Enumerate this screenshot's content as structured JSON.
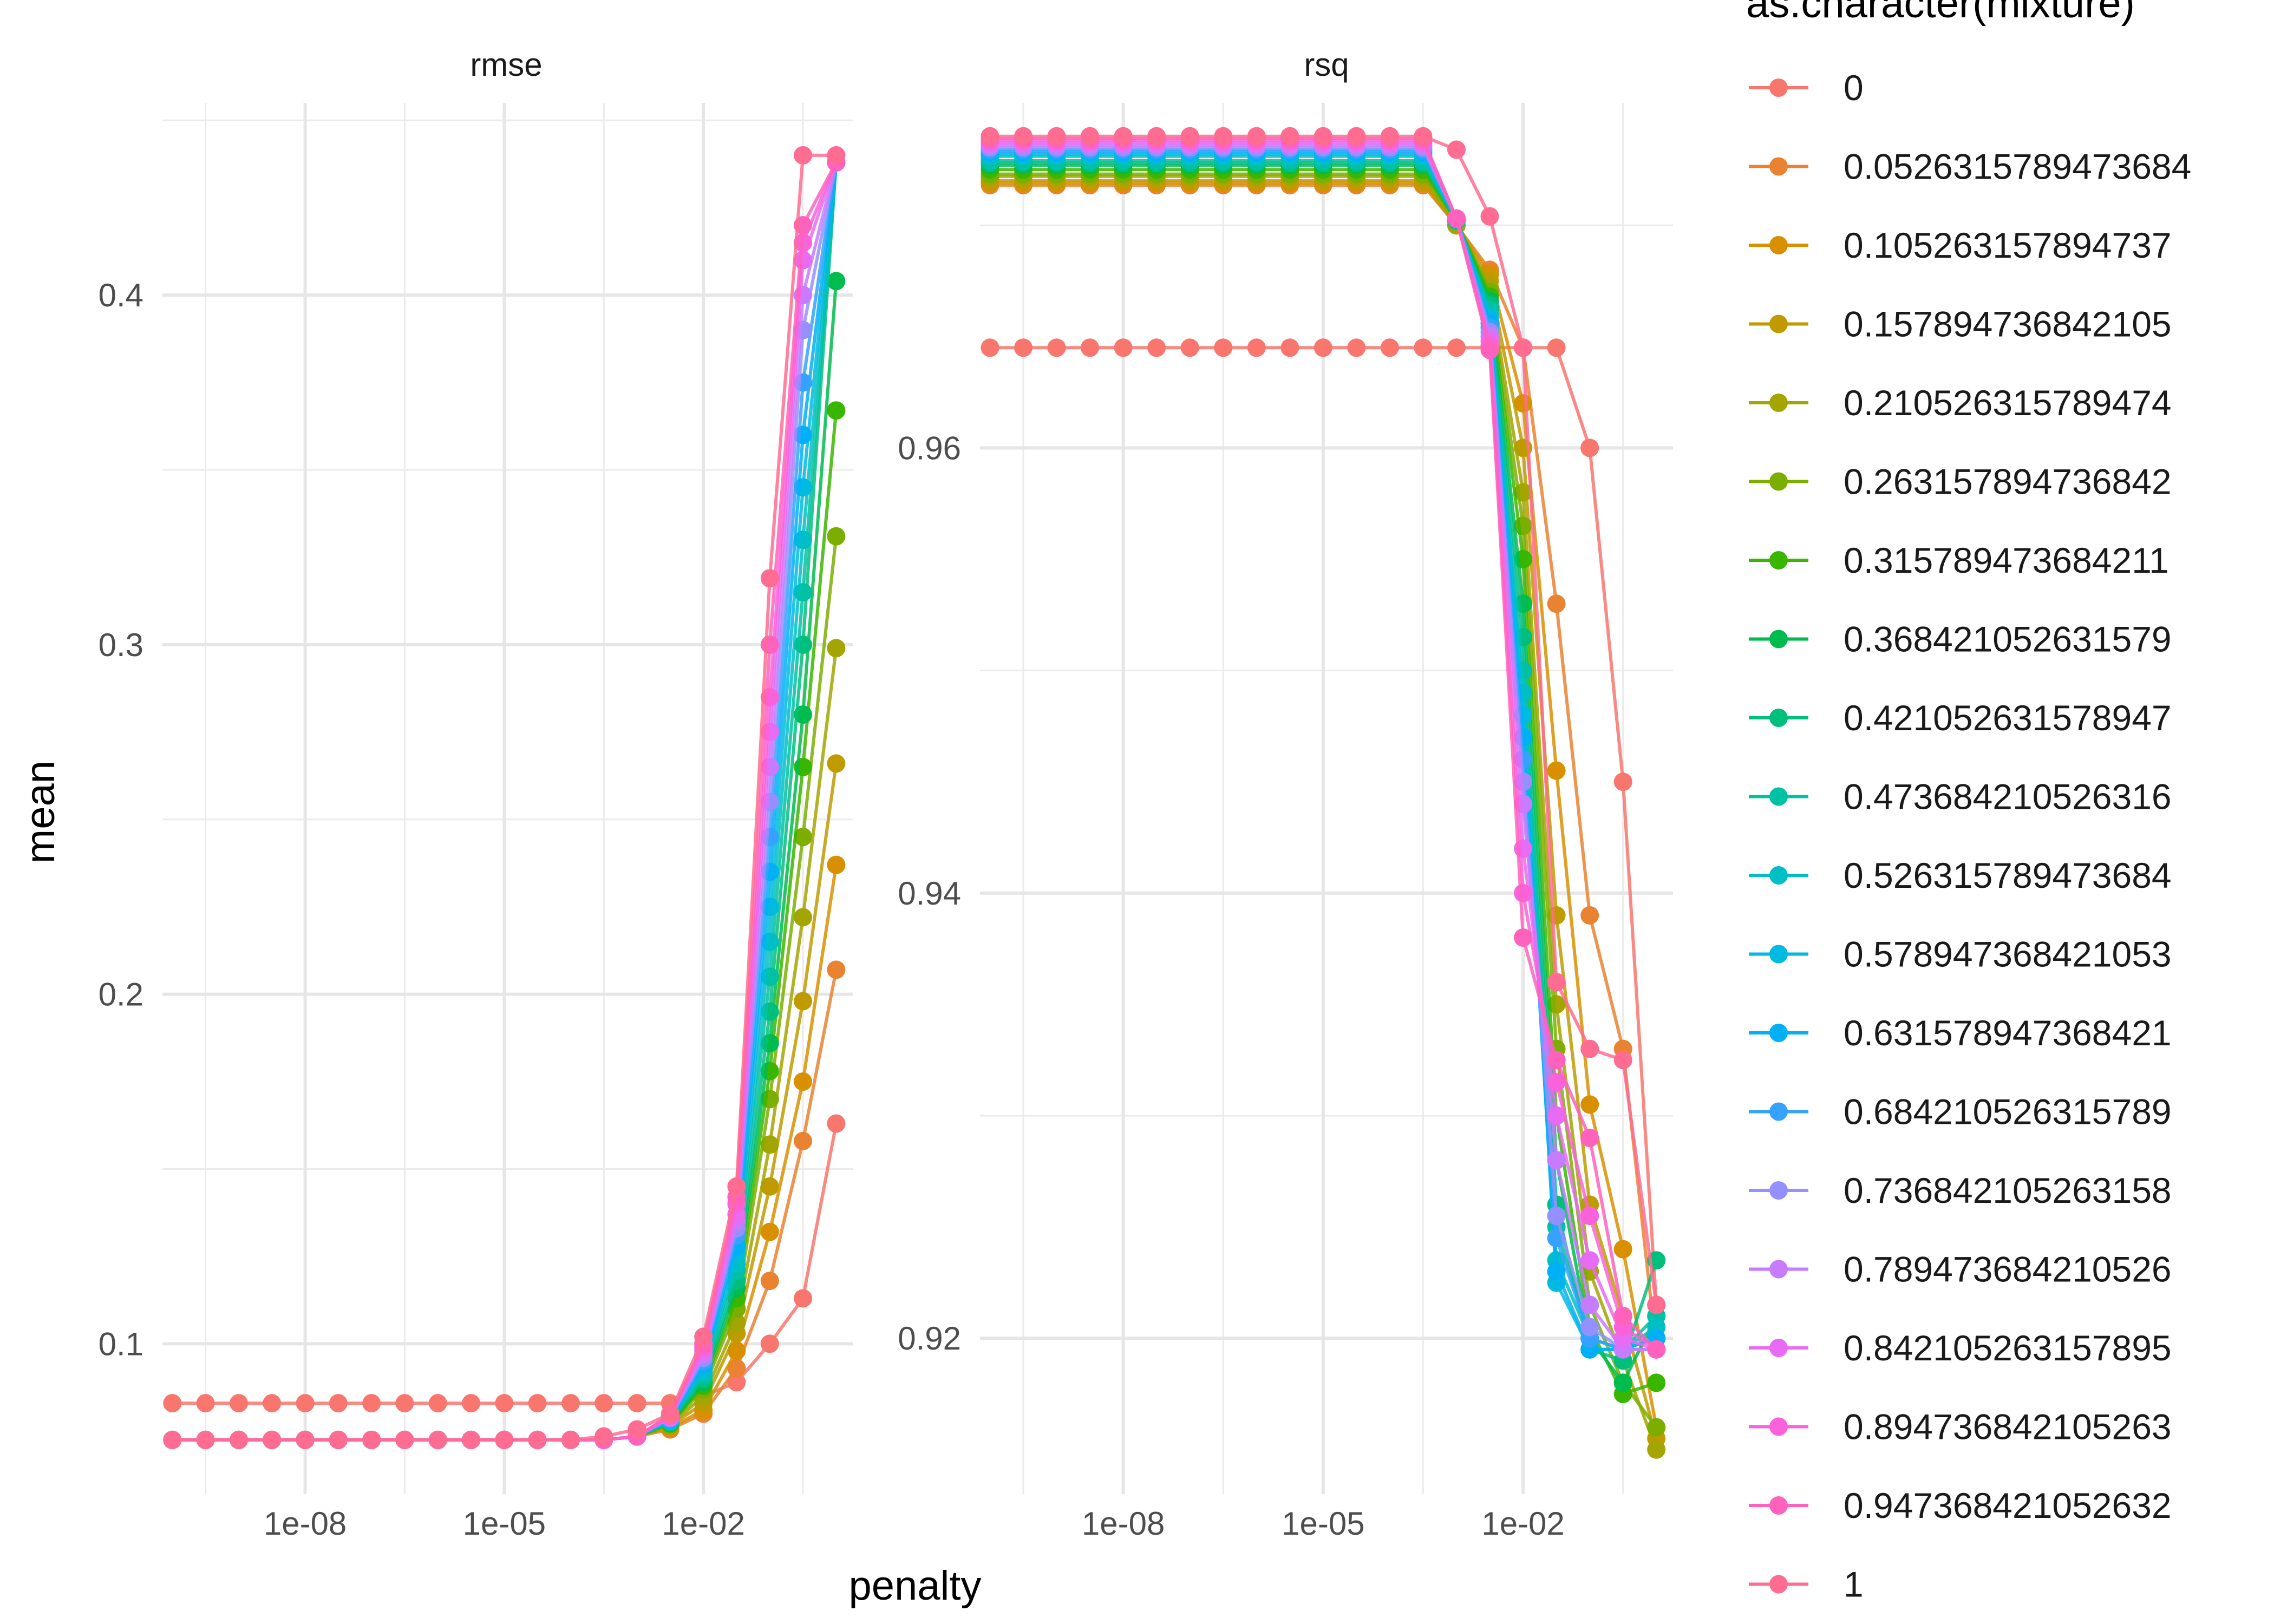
{
  "chart_data": {
    "type": "line",
    "facets": [
      "rmse",
      "rsq"
    ],
    "xlabel": "penalty",
    "ylabel": "mean",
    "x_scale": "log10",
    "x_ticks": [
      "1e-08",
      "1e-05",
      "1e-02"
    ],
    "x_range": [
      1e-10,
      1
    ],
    "panels": {
      "rmse": {
        "ylim": [
          0.057,
          0.455
        ],
        "y_ticks": [
          "0.1",
          "0.2",
          "0.3",
          "0.4"
        ],
        "y_tick_values": [
          0.1,
          0.2,
          0.3,
          0.4
        ]
      },
      "rsq": {
        "ylim": [
          0.913,
          0.9755
        ],
        "y_ticks": [
          "0.92",
          "0.94",
          "0.96"
        ],
        "y_tick_values": [
          0.92,
          0.94,
          0.96
        ]
      }
    },
    "penalty": [
      1e-10,
      3.16e-10,
      1e-09,
      3.16e-09,
      1e-08,
      3.16e-08,
      1e-07,
      3.16e-07,
      1e-06,
      3.16e-06,
      1e-05,
      3.16e-05,
      0.0001,
      0.000316,
      0.001,
      0.00316,
      0.01,
      0.0316,
      0.1,
      0.316,
      1
    ],
    "legend": {
      "title": "as.character(mixture)",
      "position": "right",
      "entries": [
        "0",
        "0.0526315789473684",
        "0.105263157894737",
        "0.157894736842105",
        "0.210526315789474",
        "0.263157894736842",
        "0.315789473684211",
        "0.368421052631579",
        "0.421052631578947",
        "0.473684210526316",
        "0.526315789473684",
        "0.578947368421053",
        "0.631578947368421",
        "0.684210526315789",
        "0.736842105263158",
        "0.789473684210526",
        "0.842105263157895",
        "0.894736842105263",
        "0.947368421052632",
        "1"
      ],
      "colors": [
        "#F8766D",
        "#EA8331",
        "#D89000",
        "#C09B00",
        "#A3A500",
        "#7CAE00",
        "#39B600",
        "#00BB4E",
        "#00BF7D",
        "#00C1A3",
        "#00BFC4",
        "#00BAE0",
        "#00B0F6",
        "#35A2FF",
        "#9590FF",
        "#C77CFF",
        "#E76BF3",
        "#FA62DB",
        "#FF62BC",
        "#FF6C91"
      ]
    },
    "series": [
      {
        "name": "0",
        "rmse": [
          0.083,
          0.083,
          0.083,
          0.083,
          0.083,
          0.083,
          0.083,
          0.083,
          0.083,
          0.083,
          0.083,
          0.083,
          0.083,
          0.083,
          0.083,
          0.083,
          0.085,
          0.089,
          0.1,
          0.113,
          0.163
        ],
        "rsq": [
          0.9645,
          0.9645,
          0.9645,
          0.9645,
          0.9645,
          0.9645,
          0.9645,
          0.9645,
          0.9645,
          0.9645,
          0.9645,
          0.9645,
          0.9645,
          0.9645,
          0.9645,
          0.9645,
          0.9645,
          0.9645,
          0.96,
          0.945,
          0.9215
        ]
      },
      {
        "name": "0.0526315789473684",
        "rmse": [
          0.0725,
          0.0725,
          0.0725,
          0.0725,
          0.0725,
          0.0725,
          0.0725,
          0.0725,
          0.0725,
          0.0725,
          0.0725,
          0.0725,
          0.0725,
          0.0725,
          0.0735,
          0.0755,
          0.08,
          0.093,
          0.118,
          0.158,
          0.207
        ],
        "rsq": [
          0.9718,
          0.9718,
          0.9718,
          0.9718,
          0.9718,
          0.9718,
          0.9718,
          0.9718,
          0.9718,
          0.9718,
          0.9718,
          0.9718,
          0.9718,
          0.9718,
          0.97,
          0.968,
          0.9645,
          0.953,
          0.939,
          0.933,
          0.9195
        ]
      },
      {
        "name": "0.105263157894737",
        "rmse": [
          0.0725,
          0.0725,
          0.0725,
          0.0725,
          0.0725,
          0.0725,
          0.0725,
          0.0725,
          0.0725,
          0.0725,
          0.0725,
          0.0725,
          0.0725,
          0.0725,
          0.0735,
          0.076,
          0.081,
          0.098,
          0.132,
          0.175,
          0.237
        ],
        "rsq": [
          0.9719,
          0.9719,
          0.9719,
          0.9719,
          0.9719,
          0.9719,
          0.9719,
          0.9719,
          0.9719,
          0.9719,
          0.9719,
          0.9719,
          0.9719,
          0.9719,
          0.97,
          0.9678,
          0.962,
          0.9455,
          0.9305,
          0.924,
          0.916
        ]
      },
      {
        "name": "0.157894736842105",
        "rmse": [
          0.0725,
          0.0725,
          0.0725,
          0.0725,
          0.0725,
          0.0725,
          0.0725,
          0.0725,
          0.0725,
          0.0725,
          0.0725,
          0.0725,
          0.0725,
          0.0725,
          0.0735,
          0.0765,
          0.083,
          0.103,
          0.145,
          0.198,
          0.266
        ],
        "rsq": [
          0.972,
          0.972,
          0.972,
          0.972,
          0.972,
          0.972,
          0.972,
          0.972,
          0.972,
          0.972,
          0.972,
          0.972,
          0.972,
          0.972,
          0.97,
          0.9675,
          0.96,
          0.939,
          0.926,
          0.921,
          0.9155
        ]
      },
      {
        "name": "0.210526315789474",
        "rmse": [
          0.0725,
          0.0725,
          0.0725,
          0.0725,
          0.0725,
          0.0725,
          0.0725,
          0.0725,
          0.0725,
          0.0725,
          0.0725,
          0.0725,
          0.0725,
          0.0725,
          0.0735,
          0.0768,
          0.085,
          0.106,
          0.157,
          0.222,
          0.299
        ],
        "rsq": [
          0.9722,
          0.9722,
          0.9722,
          0.9722,
          0.9722,
          0.9722,
          0.9722,
          0.9722,
          0.9722,
          0.9722,
          0.9722,
          0.9722,
          0.9722,
          0.9722,
          0.97,
          0.9672,
          0.958,
          0.935,
          0.923,
          0.919,
          0.915
        ]
      },
      {
        "name": "0.263157894736842",
        "rmse": [
          0.0725,
          0.0725,
          0.0725,
          0.0725,
          0.0725,
          0.0725,
          0.0725,
          0.0725,
          0.0725,
          0.0725,
          0.0725,
          0.0725,
          0.0725,
          0.0725,
          0.0735,
          0.077,
          0.087,
          0.11,
          0.17,
          0.245,
          0.331
        ],
        "rsq": [
          0.9723,
          0.9723,
          0.9723,
          0.9723,
          0.9723,
          0.9723,
          0.9723,
          0.9723,
          0.9723,
          0.9723,
          0.9723,
          0.9723,
          0.9723,
          0.9723,
          0.9702,
          0.967,
          0.9565,
          0.933,
          0.9215,
          0.918,
          0.916
        ]
      },
      {
        "name": "0.315789473684211",
        "rmse": [
          0.0725,
          0.0725,
          0.0725,
          0.0725,
          0.0725,
          0.0725,
          0.0725,
          0.0725,
          0.0725,
          0.0725,
          0.0725,
          0.0725,
          0.0725,
          0.0725,
          0.0735,
          0.0772,
          0.088,
          0.113,
          0.178,
          0.265,
          0.367
        ],
        "rsq": [
          0.9725,
          0.9725,
          0.9725,
          0.9725,
          0.9725,
          0.9725,
          0.9725,
          0.9725,
          0.9725,
          0.9725,
          0.9725,
          0.9725,
          0.9725,
          0.9725,
          0.9702,
          0.9668,
          0.955,
          0.93,
          0.9205,
          0.9175,
          0.918
        ]
      },
      {
        "name": "0.368421052631579",
        "rmse": [
          0.0725,
          0.0725,
          0.0725,
          0.0725,
          0.0725,
          0.0725,
          0.0725,
          0.0725,
          0.0725,
          0.0725,
          0.0725,
          0.0725,
          0.0725,
          0.0725,
          0.0735,
          0.0774,
          0.089,
          0.116,
          0.186,
          0.28,
          0.404
        ],
        "rsq": [
          0.9727,
          0.9727,
          0.9727,
          0.9727,
          0.9727,
          0.9727,
          0.9727,
          0.9727,
          0.9727,
          0.9727,
          0.9727,
          0.9727,
          0.9727,
          0.9727,
          0.9702,
          0.9666,
          0.953,
          0.928,
          0.92,
          0.918,
          0.921
        ]
      },
      {
        "name": "0.421052631578947",
        "rmse": [
          0.0725,
          0.0725,
          0.0725,
          0.0725,
          0.0725,
          0.0725,
          0.0725,
          0.0725,
          0.0725,
          0.0725,
          0.0725,
          0.0725,
          0.0725,
          0.0725,
          0.0735,
          0.0776,
          0.09,
          0.118,
          0.195,
          0.3,
          0.438
        ],
        "rsq": [
          0.9728,
          0.9728,
          0.9728,
          0.9728,
          0.9728,
          0.9728,
          0.9728,
          0.9728,
          0.9728,
          0.9728,
          0.9728,
          0.9728,
          0.9728,
          0.9728,
          0.9702,
          0.9664,
          0.9515,
          0.926,
          0.9195,
          0.919,
          0.9235
        ]
      },
      {
        "name": "0.473684210526316",
        "rmse": [
          0.0725,
          0.0725,
          0.0725,
          0.0725,
          0.0725,
          0.0725,
          0.0725,
          0.0725,
          0.0725,
          0.0725,
          0.0725,
          0.0725,
          0.0725,
          0.0725,
          0.0735,
          0.0778,
          0.091,
          0.121,
          0.205,
          0.315,
          0.438
        ],
        "rsq": [
          0.9729,
          0.9729,
          0.9729,
          0.9729,
          0.9729,
          0.9729,
          0.9729,
          0.9729,
          0.9729,
          0.9729,
          0.9729,
          0.9729,
          0.9729,
          0.9729,
          0.9702,
          0.9662,
          0.95,
          0.925,
          0.92,
          0.9195,
          0.921
        ]
      },
      {
        "name": "0.526315789473684",
        "rmse": [
          0.0725,
          0.0725,
          0.0725,
          0.0725,
          0.0725,
          0.0725,
          0.0725,
          0.0725,
          0.0725,
          0.0725,
          0.0725,
          0.0725,
          0.0725,
          0.0725,
          0.0735,
          0.078,
          0.092,
          0.123,
          0.215,
          0.33,
          0.438
        ],
        "rsq": [
          0.9731,
          0.9731,
          0.9731,
          0.9731,
          0.9731,
          0.9731,
          0.9731,
          0.9731,
          0.9731,
          0.9731,
          0.9731,
          0.9731,
          0.9731,
          0.9731,
          0.9703,
          0.966,
          0.949,
          0.9235,
          0.92,
          0.9195,
          0.9205
        ]
      },
      {
        "name": "0.578947368421053",
        "rmse": [
          0.0725,
          0.0725,
          0.0725,
          0.0725,
          0.0725,
          0.0725,
          0.0725,
          0.0725,
          0.0725,
          0.0725,
          0.0725,
          0.0725,
          0.0725,
          0.0725,
          0.0735,
          0.0782,
          0.093,
          0.126,
          0.225,
          0.345,
          0.438
        ],
        "rsq": [
          0.9732,
          0.9732,
          0.9732,
          0.9732,
          0.9732,
          0.9732,
          0.9732,
          0.9732,
          0.9732,
          0.9732,
          0.9732,
          0.9732,
          0.9732,
          0.9732,
          0.9703,
          0.9658,
          0.948,
          0.9225,
          0.9195,
          0.9195,
          0.92
        ]
      },
      {
        "name": "0.631578947368421",
        "rmse": [
          0.0725,
          0.0725,
          0.0725,
          0.0725,
          0.0725,
          0.0725,
          0.0725,
          0.0725,
          0.0725,
          0.0725,
          0.0725,
          0.0725,
          0.0725,
          0.0725,
          0.0735,
          0.0784,
          0.094,
          0.128,
          0.235,
          0.36,
          0.438
        ],
        "rsq": [
          0.9733,
          0.9733,
          0.9733,
          0.9733,
          0.9733,
          0.9733,
          0.9733,
          0.9733,
          0.9733,
          0.9733,
          0.9733,
          0.9733,
          0.9733,
          0.9733,
          0.9703,
          0.9656,
          0.947,
          0.923,
          0.9195,
          0.9195,
          0.92
        ]
      },
      {
        "name": "0.684210526315789",
        "rmse": [
          0.0725,
          0.0725,
          0.0725,
          0.0725,
          0.0725,
          0.0725,
          0.0725,
          0.0725,
          0.0725,
          0.0725,
          0.0725,
          0.0725,
          0.0725,
          0.0725,
          0.0735,
          0.0786,
          0.095,
          0.131,
          0.245,
          0.375,
          0.438
        ],
        "rsq": [
          0.9734,
          0.9734,
          0.9734,
          0.9734,
          0.9734,
          0.9734,
          0.9734,
          0.9734,
          0.9734,
          0.9734,
          0.9734,
          0.9734,
          0.9734,
          0.9734,
          0.9703,
          0.9654,
          0.946,
          0.9245,
          0.92,
          0.9195,
          0.9195
        ]
      },
      {
        "name": "0.736842105263158",
        "rmse": [
          0.0725,
          0.0725,
          0.0725,
          0.0725,
          0.0725,
          0.0725,
          0.0725,
          0.0725,
          0.0725,
          0.0725,
          0.0725,
          0.0725,
          0.0725,
          0.0725,
          0.0735,
          0.0788,
          0.096,
          0.133,
          0.255,
          0.39,
          0.438
        ],
        "rsq": [
          0.9735,
          0.9735,
          0.9735,
          0.9735,
          0.9735,
          0.9735,
          0.9735,
          0.9735,
          0.9735,
          0.9735,
          0.9735,
          0.9735,
          0.9735,
          0.9735,
          0.9703,
          0.9652,
          0.945,
          0.9255,
          0.9205,
          0.9195,
          0.9195
        ]
      },
      {
        "name": "0.789473684210526",
        "rmse": [
          0.0725,
          0.0725,
          0.0725,
          0.0725,
          0.0725,
          0.0725,
          0.0725,
          0.0725,
          0.0725,
          0.0725,
          0.0725,
          0.0725,
          0.0725,
          0.0725,
          0.0735,
          0.079,
          0.097,
          0.135,
          0.265,
          0.4,
          0.438
        ],
        "rsq": [
          0.9736,
          0.9736,
          0.9736,
          0.9736,
          0.9736,
          0.9736,
          0.9736,
          0.9736,
          0.9736,
          0.9736,
          0.9736,
          0.9736,
          0.9736,
          0.9736,
          0.9703,
          0.965,
          0.944,
          0.928,
          0.9215,
          0.9195,
          0.9195
        ]
      },
      {
        "name": "0.842105263157895",
        "rmse": [
          0.0725,
          0.0725,
          0.0725,
          0.0725,
          0.0725,
          0.0725,
          0.0725,
          0.0725,
          0.0725,
          0.0725,
          0.0725,
          0.0725,
          0.0725,
          0.0725,
          0.0735,
          0.0792,
          0.098,
          0.137,
          0.275,
          0.41,
          0.438
        ],
        "rsq": [
          0.9737,
          0.9737,
          0.9737,
          0.9737,
          0.9737,
          0.9737,
          0.9737,
          0.9737,
          0.9737,
          0.9737,
          0.9737,
          0.9737,
          0.9737,
          0.9737,
          0.9703,
          0.9648,
          0.942,
          0.93,
          0.9235,
          0.92,
          0.9195
        ]
      },
      {
        "name": "0.894736842105263",
        "rmse": [
          0.0725,
          0.0725,
          0.0725,
          0.0725,
          0.0725,
          0.0725,
          0.0725,
          0.0725,
          0.0725,
          0.0725,
          0.0725,
          0.0725,
          0.0725,
          0.0725,
          0.0735,
          0.0794,
          0.099,
          0.14,
          0.285,
          0.415,
          0.438
        ],
        "rsq": [
          0.9738,
          0.9738,
          0.9738,
          0.9738,
          0.9738,
          0.9738,
          0.9738,
          0.9738,
          0.9738,
          0.9738,
          0.9738,
          0.9738,
          0.9738,
          0.9738,
          0.9703,
          0.9646,
          0.94,
          0.9315,
          0.9255,
          0.9205,
          0.9195
        ]
      },
      {
        "name": "0.947368421052632",
        "rmse": [
          0.0725,
          0.0725,
          0.0725,
          0.0725,
          0.0725,
          0.0725,
          0.0725,
          0.0725,
          0.0725,
          0.0725,
          0.0725,
          0.0725,
          0.0725,
          0.0725,
          0.0735,
          0.0796,
          0.1,
          0.142,
          0.3,
          0.42,
          0.438
        ],
        "rsq": [
          0.9739,
          0.9739,
          0.9739,
          0.9739,
          0.9739,
          0.9739,
          0.9739,
          0.9739,
          0.9739,
          0.9739,
          0.9739,
          0.9739,
          0.9739,
          0.9739,
          0.9703,
          0.9644,
          0.938,
          0.9325,
          0.929,
          0.921,
          0.9195
        ]
      },
      {
        "name": "1",
        "rmse": [
          0.0725,
          0.0725,
          0.0725,
          0.0725,
          0.0725,
          0.0725,
          0.0725,
          0.0725,
          0.0725,
          0.0725,
          0.0725,
          0.0725,
          0.0725,
          0.0735,
          0.0755,
          0.08,
          0.102,
          0.145,
          0.319,
          0.44,
          0.44
        ],
        "rsq": [
          0.974,
          0.974,
          0.974,
          0.974,
          0.974,
          0.974,
          0.974,
          0.974,
          0.974,
          0.974,
          0.974,
          0.974,
          0.974,
          0.974,
          0.9734,
          0.9704,
          0.9645,
          0.936,
          0.933,
          0.9325,
          0.9215
        ]
      }
    ]
  }
}
